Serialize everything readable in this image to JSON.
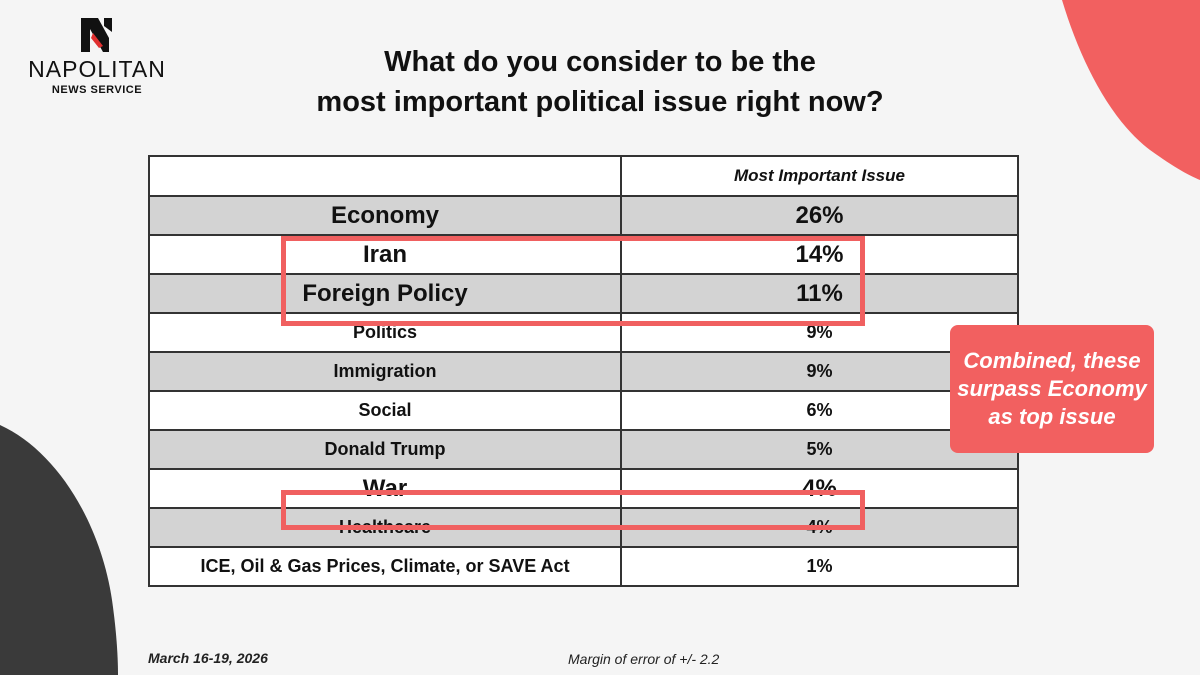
{
  "brand": {
    "name": "NAPOLITAN",
    "subtitle": "NEWS SERVICE",
    "colors": {
      "accent": "#f26060",
      "dark": "#3a3a3a",
      "row_alt": "#d3d3d3"
    }
  },
  "title": {
    "line1": "What do you consider to be the",
    "line2": "most important political issue right now?"
  },
  "chart_data": {
    "type": "table",
    "title": "What do you consider to be the most important political issue right now?",
    "column_header": "Most Important Issue",
    "categories": [
      "Economy",
      "Iran",
      "Foreign Policy",
      "Politics",
      "Immigration",
      "Social",
      "Donald Trump",
      "War",
      "Healthcare",
      "ICE, Oil & Gas Prices, Climate, or SAVE Act"
    ],
    "values": [
      26,
      14,
      11,
      9,
      9,
      6,
      5,
      4,
      4,
      1
    ],
    "rows": [
      {
        "label": "Economy",
        "value": "26%"
      },
      {
        "label": "Iran",
        "value": "14%"
      },
      {
        "label": "Foreign Policy",
        "value": "11%"
      },
      {
        "label": "Politics",
        "value": "9%"
      },
      {
        "label": "Immigration",
        "value": "9%"
      },
      {
        "label": "Social",
        "value": "6%"
      },
      {
        "label": "Donald Trump",
        "value": "5%"
      },
      {
        "label": "War",
        "value": "4%"
      },
      {
        "label": "Healthcare",
        "value": "4%"
      },
      {
        "label": "ICE, Oil & Gas Prices, Climate, or SAVE Act",
        "value": "1%"
      }
    ],
    "highlighted": [
      "Iran",
      "Foreign Policy",
      "War"
    ],
    "annotation": "Combined, these surpass Economy as top issue"
  },
  "footer": {
    "date": "March 16-19, 2026",
    "margin_of_error": "Margin of error of +/- 2.2"
  }
}
